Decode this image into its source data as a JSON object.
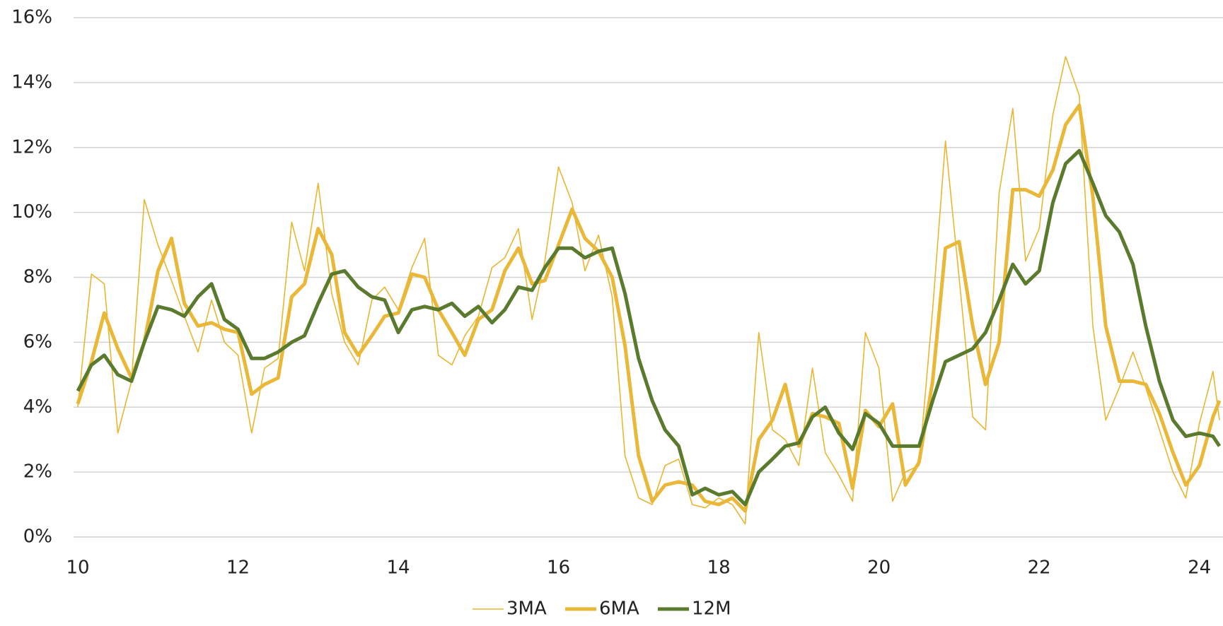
{
  "chart_data": {
    "type": "line",
    "x": [
      10,
      10.17,
      10.33,
      10.5,
      10.67,
      10.83,
      11,
      11.17,
      11.33,
      11.5,
      11.67,
      11.83,
      12,
      12.17,
      12.33,
      12.5,
      12.67,
      12.83,
      13,
      13.17,
      13.33,
      13.5,
      13.67,
      13.83,
      14,
      14.17,
      14.33,
      14.5,
      14.67,
      14.83,
      15,
      15.17,
      15.33,
      15.5,
      15.67,
      15.83,
      16,
      16.17,
      16.33,
      16.5,
      16.67,
      16.83,
      17,
      17.17,
      17.33,
      17.5,
      17.67,
      17.83,
      18,
      18.17,
      18.33,
      18.5,
      18.67,
      18.83,
      19,
      19.17,
      19.33,
      19.5,
      19.67,
      19.83,
      20,
      20.17,
      20.33,
      20.5,
      20.67,
      20.83,
      21,
      21.17,
      21.33,
      21.5,
      21.67,
      21.83,
      22,
      22.17,
      22.33,
      22.5,
      22.67,
      22.83,
      23,
      23.17,
      23.33,
      23.5,
      23.67,
      23.83,
      24,
      24.17,
      24.25
    ],
    "series": [
      {
        "name": "3MA",
        "color": "#e8b630",
        "width": 1.6,
        "values": [
          4.0,
          8.1,
          7.8,
          3.2,
          4.8,
          10.4,
          9.0,
          7.9,
          6.8,
          5.7,
          7.3,
          6.0,
          5.6,
          3.2,
          5.2,
          5.5,
          9.7,
          8.2,
          10.9,
          7.5,
          6.0,
          5.3,
          7.3,
          7.7,
          7.0,
          8.3,
          9.2,
          5.6,
          5.3,
          6.2,
          6.8,
          8.3,
          8.6,
          9.5,
          6.7,
          8.5,
          11.4,
          10.3,
          8.2,
          9.3,
          7.4,
          2.5,
          1.2,
          1.0,
          2.2,
          2.4,
          1.0,
          0.9,
          1.2,
          1.0,
          0.4,
          6.3,
          3.3,
          3.0,
          2.2,
          5.2,
          2.6,
          1.9,
          1.1,
          6.3,
          5.2,
          1.1,
          2.0,
          2.2,
          7.0,
          12.2,
          8.0,
          3.7,
          3.3,
          10.6,
          13.2,
          8.5,
          9.5,
          13.0,
          14.8,
          13.6,
          6.5,
          3.6,
          4.6,
          5.7,
          4.6,
          3.3,
          2.0,
          1.2,
          3.5,
          5.1,
          3.6
        ]
      },
      {
        "name": "6MA",
        "color": "#e9b838",
        "width": 5,
        "values": [
          4.1,
          5.4,
          6.9,
          5.8,
          4.9,
          6.0,
          8.2,
          9.2,
          7.2,
          6.5,
          6.6,
          6.4,
          6.3,
          4.4,
          4.7,
          4.9,
          7.4,
          7.8,
          9.5,
          8.7,
          6.3,
          5.6,
          6.2,
          6.8,
          6.9,
          8.1,
          8.0,
          7.0,
          6.3,
          5.6,
          6.7,
          7.0,
          8.2,
          8.9,
          7.8,
          7.9,
          9.0,
          10.1,
          9.2,
          8.8,
          8.0,
          5.9,
          2.5,
          1.1,
          1.6,
          1.7,
          1.6,
          1.1,
          1.0,
          1.2,
          0.8,
          3.0,
          3.6,
          4.7,
          2.8,
          3.8,
          3.7,
          3.5,
          1.5,
          3.9,
          3.4,
          4.1,
          1.6,
          2.3,
          4.8,
          8.9,
          9.1,
          6.5,
          4.7,
          6.0,
          10.7,
          10.7,
          10.5,
          11.3,
          12.7,
          13.3,
          10.5,
          6.5,
          4.8,
          4.8,
          4.7,
          3.8,
          2.6,
          1.6,
          2.2,
          3.7,
          4.2
        ]
      },
      {
        "name": "12M",
        "color": "#5a7a2e",
        "width": 5,
        "values": [
          4.5,
          5.3,
          5.6,
          5.0,
          4.8,
          6.0,
          7.1,
          7.0,
          6.8,
          7.4,
          7.8,
          6.7,
          6.4,
          5.5,
          5.5,
          5.7,
          6.0,
          6.2,
          7.2,
          8.1,
          8.2,
          7.7,
          7.4,
          7.3,
          6.3,
          7.0,
          7.1,
          7.0,
          7.2,
          6.8,
          7.1,
          6.6,
          7.0,
          7.7,
          7.6,
          8.3,
          8.9,
          8.9,
          8.6,
          8.8,
          8.9,
          7.5,
          5.5,
          4.2,
          3.3,
          2.8,
          1.3,
          1.5,
          1.3,
          1.4,
          1.0,
          2.0,
          2.4,
          2.8,
          2.9,
          3.7,
          4.0,
          3.2,
          2.7,
          3.8,
          3.5,
          2.8,
          2.8,
          2.8,
          4.2,
          5.4,
          5.6,
          5.8,
          6.3,
          7.3,
          8.4,
          7.8,
          8.2,
          10.3,
          11.5,
          11.9,
          10.9,
          9.9,
          9.4,
          8.4,
          6.5,
          4.8,
          3.6,
          3.1,
          3.2,
          3.1,
          2.8
        ]
      }
    ],
    "xlim": [
      10,
      24.25
    ],
    "xticks": [
      10,
      12,
      14,
      16,
      18,
      20,
      22,
      24
    ],
    "ylim": [
      0,
      16
    ],
    "yticks": [
      {
        "value": 0,
        "label": "0%"
      },
      {
        "value": 2,
        "label": "2%"
      },
      {
        "value": 4,
        "label": "4%"
      },
      {
        "value": 6,
        "label": "6%"
      },
      {
        "value": 8,
        "label": "8%"
      },
      {
        "value": 10,
        "label": "10%"
      },
      {
        "value": 12,
        "label": "12%"
      },
      {
        "value": 14,
        "label": "14%"
      },
      {
        "value": 16,
        "label": "16%"
      }
    ],
    "grid": true,
    "legend": "bottom"
  }
}
